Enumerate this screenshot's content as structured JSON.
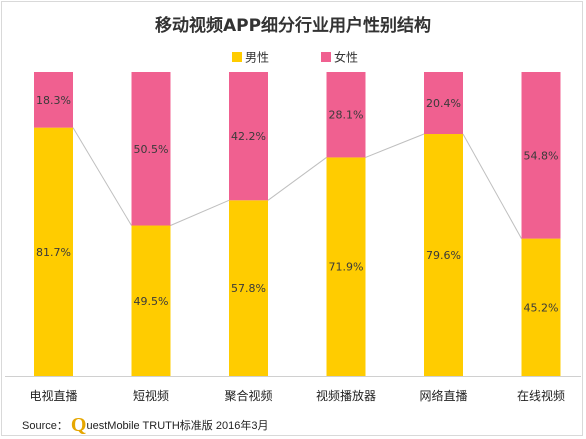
{
  "chart_data": {
    "type": "bar",
    "stacked": true,
    "title": "移动视频APP细分行业用户性别结构",
    "categories": [
      "电视直播",
      "短视频",
      "聚合视频",
      "视频播放器",
      "网络直播",
      "在线视频"
    ],
    "series": [
      {
        "name": "男性",
        "color": "#ffcc00",
        "values": [
          81.7,
          49.5,
          57.8,
          71.9,
          79.6,
          45.2
        ]
      },
      {
        "name": "女性",
        "color": "#f06090",
        "values": [
          18.3,
          50.5,
          42.2,
          28.1,
          20.4,
          54.8
        ]
      }
    ],
    "value_format": "%",
    "ylim": [
      0,
      100
    ],
    "legend_position": "top-center",
    "grid": false,
    "connector_line_color": "#bfbfbf"
  },
  "source": {
    "label": "Source：",
    "logo_letter": "Q",
    "text": "uestMobile TRUTH标准版 2016年3月"
  }
}
